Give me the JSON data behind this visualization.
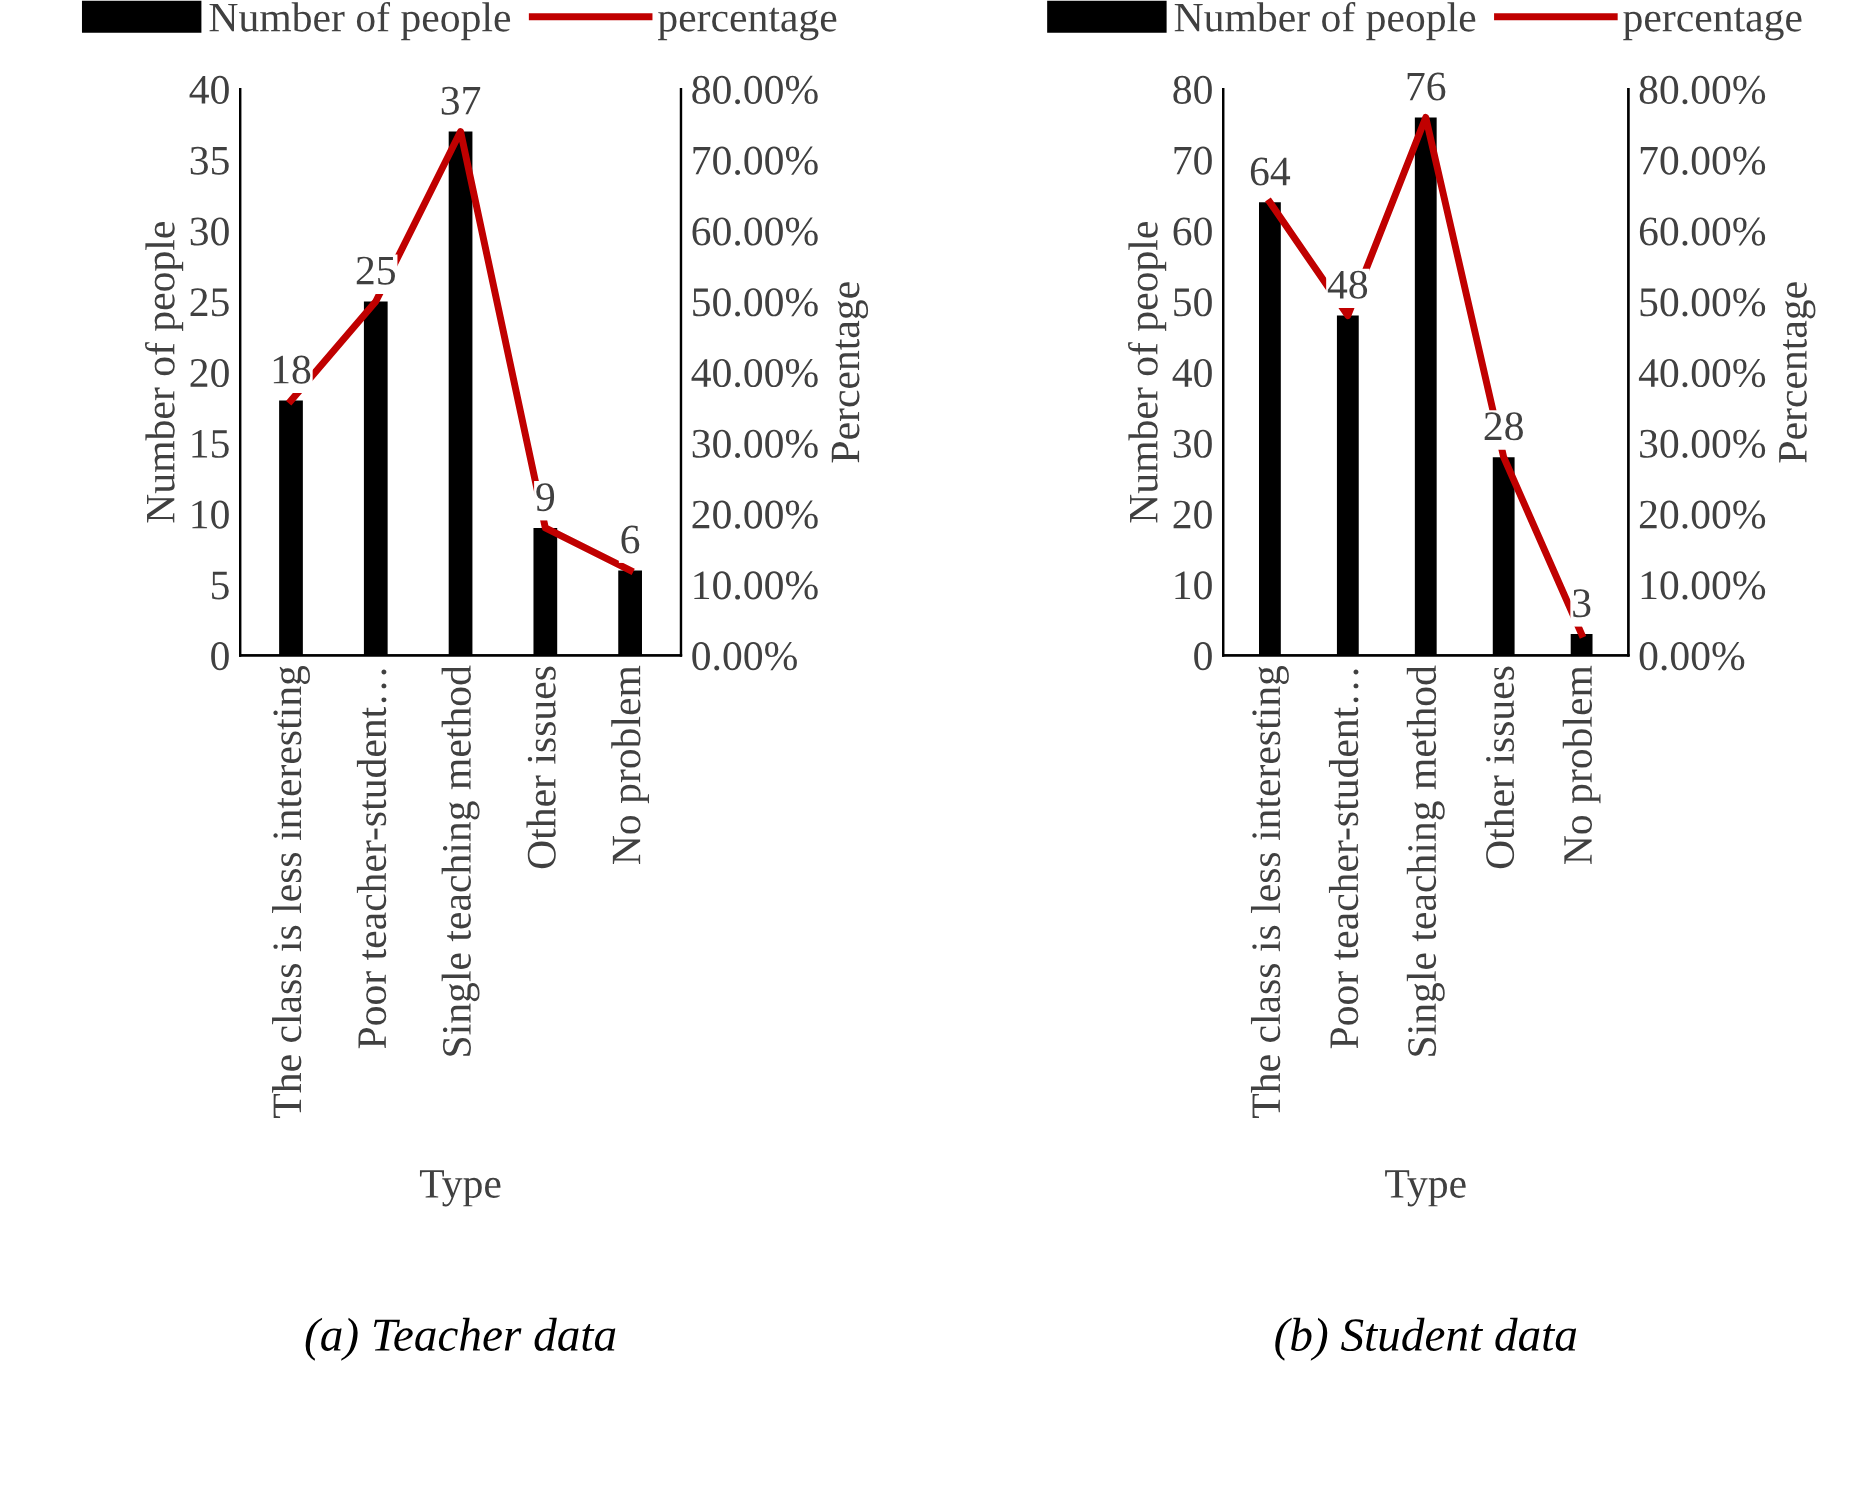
{
  "chart_data": [
    {
      "type": "bar",
      "categories": [
        "The class is less interesting",
        "Poor teacher-student…",
        "Single teaching method",
        "Other issues",
        "No problem"
      ],
      "series": [
        {
          "name": "Number of people",
          "color": "#000000",
          "values": [
            18,
            25,
            37,
            9,
            6
          ],
          "value_labels": [
            "18",
            "25",
            "37",
            "9",
            "6"
          ]
        },
        {
          "name": "percentage",
          "type": "line",
          "axis": "y2",
          "color": "#c00000",
          "values": [
            36,
            50,
            74,
            18,
            12
          ]
        }
      ],
      "ylim": [
        0,
        40
      ],
      "yticks": [
        0,
        5,
        10,
        15,
        20,
        25,
        30,
        35,
        40
      ],
      "y2lim": [
        0,
        80
      ],
      "y2ticks": [
        {
          "value": 0,
          "label": "0.00%"
        },
        {
          "value": 10,
          "label": "10.00%"
        },
        {
          "value": 20,
          "label": "20.00%"
        },
        {
          "value": 30,
          "label": "30.00%"
        },
        {
          "value": 40,
          "label": "40.00%"
        },
        {
          "value": 50,
          "label": "50.00%"
        },
        {
          "value": 60,
          "label": "60.00%"
        },
        {
          "value": 70,
          "label": "70.00%"
        },
        {
          "value": 80,
          "label": "80.00%"
        }
      ],
      "xlabel": "Type",
      "ylabel": "Number of people",
      "y2label": "Percentage",
      "annotations": [
        "(a) Teacher data"
      ],
      "legend": "top",
      "grid": false,
      "marker": "none",
      "line_style": "solid"
    },
    {
      "type": "bar",
      "categories": [
        "The class is less interesting",
        "Poor teacher-student…",
        "Single teaching method",
        "Other issues",
        "No problem"
      ],
      "series": [
        {
          "name": "Number of people",
          "color": "#000000",
          "values": [
            64,
            48,
            76,
            28,
            3
          ],
          "value_labels": [
            "64",
            "48",
            "76",
            "28",
            "3"
          ]
        },
        {
          "name": "percentage",
          "type": "line",
          "axis": "y2",
          "color": "#c00000",
          "values": [
            64,
            48,
            76,
            28,
            3
          ]
        }
      ],
      "ylim": [
        0,
        80
      ],
      "yticks": [
        0,
        10,
        20,
        30,
        40,
        50,
        60,
        70,
        80
      ],
      "y2lim": [
        0,
        80
      ],
      "y2ticks": [
        {
          "value": 0,
          "label": "0.00%"
        },
        {
          "value": 10,
          "label": "10.00%"
        },
        {
          "value": 20,
          "label": "20.00%"
        },
        {
          "value": 30,
          "label": "30.00%"
        },
        {
          "value": 40,
          "label": "40.00%"
        },
        {
          "value": 50,
          "label": "50.00%"
        },
        {
          "value": 60,
          "label": "60.00%"
        },
        {
          "value": 70,
          "label": "70.00%"
        },
        {
          "value": 80,
          "label": "80.00%"
        }
      ],
      "xlabel": "Type",
      "ylabel": "Number of people",
      "y2label": "Percentage",
      "annotations": [
        "(b) Student data"
      ],
      "legend": "top",
      "grid": false,
      "marker": "none",
      "line_style": "solid"
    }
  ]
}
